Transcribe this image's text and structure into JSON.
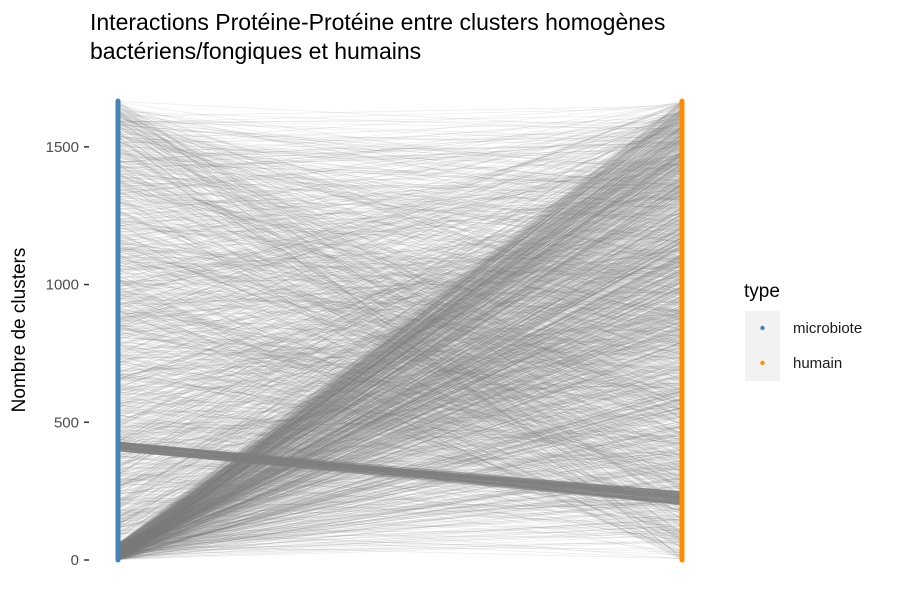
{
  "chart_data": {
    "type": "parallel-coordinates",
    "title": [
      "Interactions Protéine-Protéine entre clusters homogènes",
      "bactériens/fongiques et humains"
    ],
    "ylabel": "Nombre de clusters",
    "xlabel": "",
    "ylim": [
      0,
      1670
    ],
    "yticks": [
      0,
      500,
      1000,
      1500
    ],
    "ytick_labels": [
      "0",
      "500",
      "1000",
      "1500"
    ],
    "axes": [
      {
        "name": "microbiote",
        "color": "#4682b4",
        "max": 1666
      },
      {
        "name": "humain",
        "color": "#ff8c00",
        "max": 1666
      }
    ],
    "line_color": "#808080",
    "legend": {
      "title": "type",
      "position": "right",
      "entries": [
        {
          "label": "microbiote",
          "color": "#4682b4"
        },
        {
          "label": "humain",
          "color": "#ff8c00"
        }
      ]
    },
    "link_patterns": [
      {
        "description": "dense fan from low microbiote ranks to all humain ranks",
        "from_range": [
          0,
          60
        ],
        "to_range": [
          0,
          1666
        ],
        "approx_count": 900
      },
      {
        "description": "uniform random pairings",
        "from_range": [
          0,
          1666
        ],
        "to_range": [
          0,
          1666
        ],
        "approx_count": 1300
      },
      {
        "description": "band from ~415 microbiote to ~230 humain",
        "from_range": [
          395,
          430
        ],
        "to_range": [
          200,
          250
        ],
        "approx_count": 140
      }
    ],
    "grid": false
  }
}
